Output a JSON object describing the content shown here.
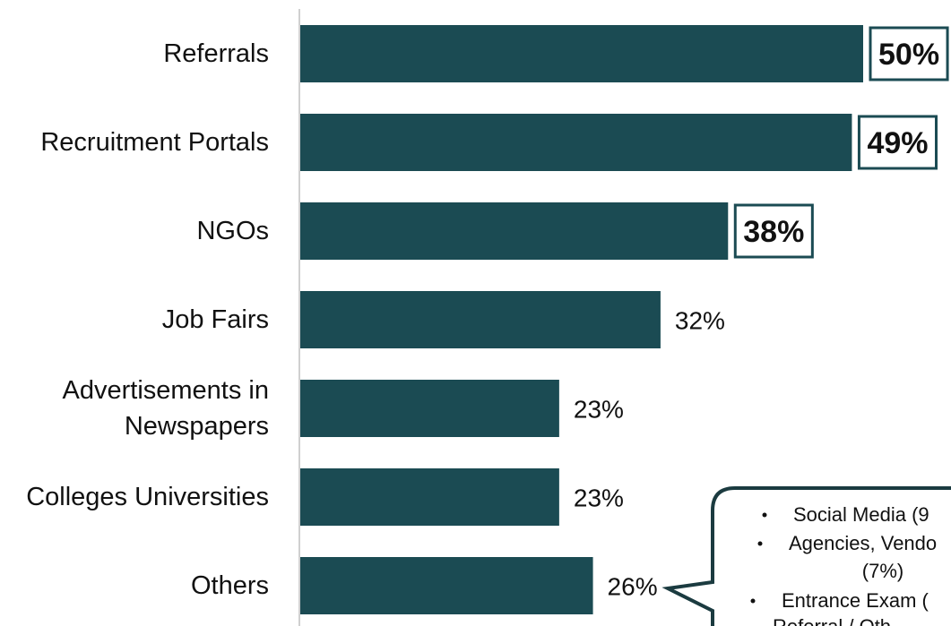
{
  "chart_data": {
    "type": "hbar",
    "categories": [
      "Referrals",
      "Recruitment Portals",
      "NGOs",
      "Job Fairs",
      "Advertisements in\nNewspapers",
      "Colleges Universities",
      "Others"
    ],
    "values": [
      50,
      49,
      38,
      32,
      23,
      23,
      26
    ],
    "value_labels": [
      "50%",
      "49%",
      "38%",
      "32%",
      "23%",
      "23%",
      "26%"
    ],
    "highlighted": [
      true,
      true,
      true,
      false,
      false,
      false,
      false
    ],
    "color": "#1b4b53",
    "xlim": [
      0,
      50
    ],
    "callout": {
      "lines": [
        "Social Media (9",
        "Agencies, Vendo",
        "(7%)",
        "Entrance Exam (",
        "Referral / Oth"
      ]
    }
  }
}
